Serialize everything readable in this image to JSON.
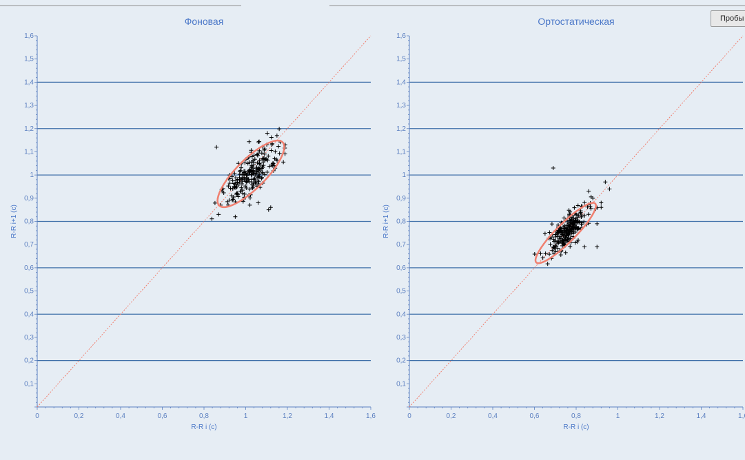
{
  "toolbar": {
    "probe_button_label": "Пробы"
  },
  "colors": {
    "background": "#e6edf4",
    "grid": "#3e6fa8",
    "axis": "#5b7fc0",
    "text": "#4a77c8",
    "ellipse": "#f08070",
    "identity_line": "#f08070",
    "points": "#000000"
  },
  "chart_data": [
    {
      "type": "scatter",
      "title": "Фоновая",
      "xlabel": "R-R i (c)",
      "ylabel": "R-R i+1 (c)",
      "xlim": [
        0,
        1.6
      ],
      "ylim": [
        0,
        1.6
      ],
      "x_ticks": [
        "0",
        "0,2",
        "0,4",
        "0,6",
        "0,8",
        "1",
        "1,2",
        "1,4",
        "1,6"
      ],
      "y_ticks": [
        "0,1",
        "0,2",
        "0,3",
        "0,4",
        "0,5",
        "0,6",
        "0,7",
        "0,8",
        "0,9",
        "1",
        "1,1",
        "1,2",
        "1,3",
        "1,4",
        "1,5",
        "1,6"
      ],
      "horizontal_gridlines": [
        0.2,
        0.4,
        0.6,
        0.8,
        1.0,
        1.2,
        1.4
      ],
      "identity_line": true,
      "marker": "+",
      "ellipse": {
        "center": [
          1.025,
          1.005
        ],
        "semi_major": 0.215,
        "semi_minor": 0.07,
        "angle_deg": 45
      },
      "cluster": {
        "mean": [
          1.03,
          1.01
        ],
        "sd_along": 0.085,
        "sd_across": 0.035,
        "count": 230
      },
      "points": [
        [
          0.86,
          1.12
        ],
        [
          1.12,
          0.86
        ],
        [
          1.06,
          0.88
        ],
        [
          0.95,
          0.82
        ],
        [
          1.15,
          1.17
        ],
        [
          0.87,
          0.83
        ],
        [
          1.13,
          1.04
        ],
        [
          1.02,
          0.87
        ],
        [
          1.11,
          0.85
        ],
        [
          0.88,
          0.87
        ]
      ]
    },
    {
      "type": "scatter",
      "title": "Ортостатическая",
      "xlabel": "R-R i (c)",
      "ylabel": "R-R i+1 (c)",
      "xlim": [
        0,
        1.6
      ],
      "ylim": [
        0,
        1.6
      ],
      "x_ticks": [
        "0",
        "0,2",
        "0,4",
        "0,6",
        "0,8",
        "1",
        "1,2",
        "1,4",
        "1,6"
      ],
      "y_ticks": [
        "0,1",
        "0,2",
        "0,3",
        "0,4",
        "0,5",
        "0,6",
        "0,7",
        "0,8",
        "0,9",
        "1",
        "1,1",
        "1,2",
        "1,3",
        "1,4",
        "1,5",
        "1,6"
      ],
      "horizontal_gridlines": [
        0.2,
        0.4,
        0.6,
        0.8,
        1.0,
        1.2,
        1.4
      ],
      "identity_line": true,
      "marker": "+",
      "ellipse": {
        "center": [
          0.75,
          0.75
        ],
        "semi_major": 0.2,
        "semi_minor": 0.045,
        "angle_deg": 45
      },
      "cluster": {
        "mean": [
          0.755,
          0.755
        ],
        "sd_along": 0.065,
        "sd_across": 0.025,
        "count": 260
      },
      "points": [
        [
          0.69,
          1.03
        ],
        [
          0.94,
          0.97
        ],
        [
          0.96,
          0.94
        ],
        [
          0.9,
          0.69
        ],
        [
          0.86,
          0.93
        ],
        [
          0.92,
          0.88
        ],
        [
          0.88,
          0.9
        ],
        [
          0.84,
          0.69
        ],
        [
          0.9,
          0.79
        ],
        [
          0.92,
          0.86
        ]
      ]
    }
  ]
}
